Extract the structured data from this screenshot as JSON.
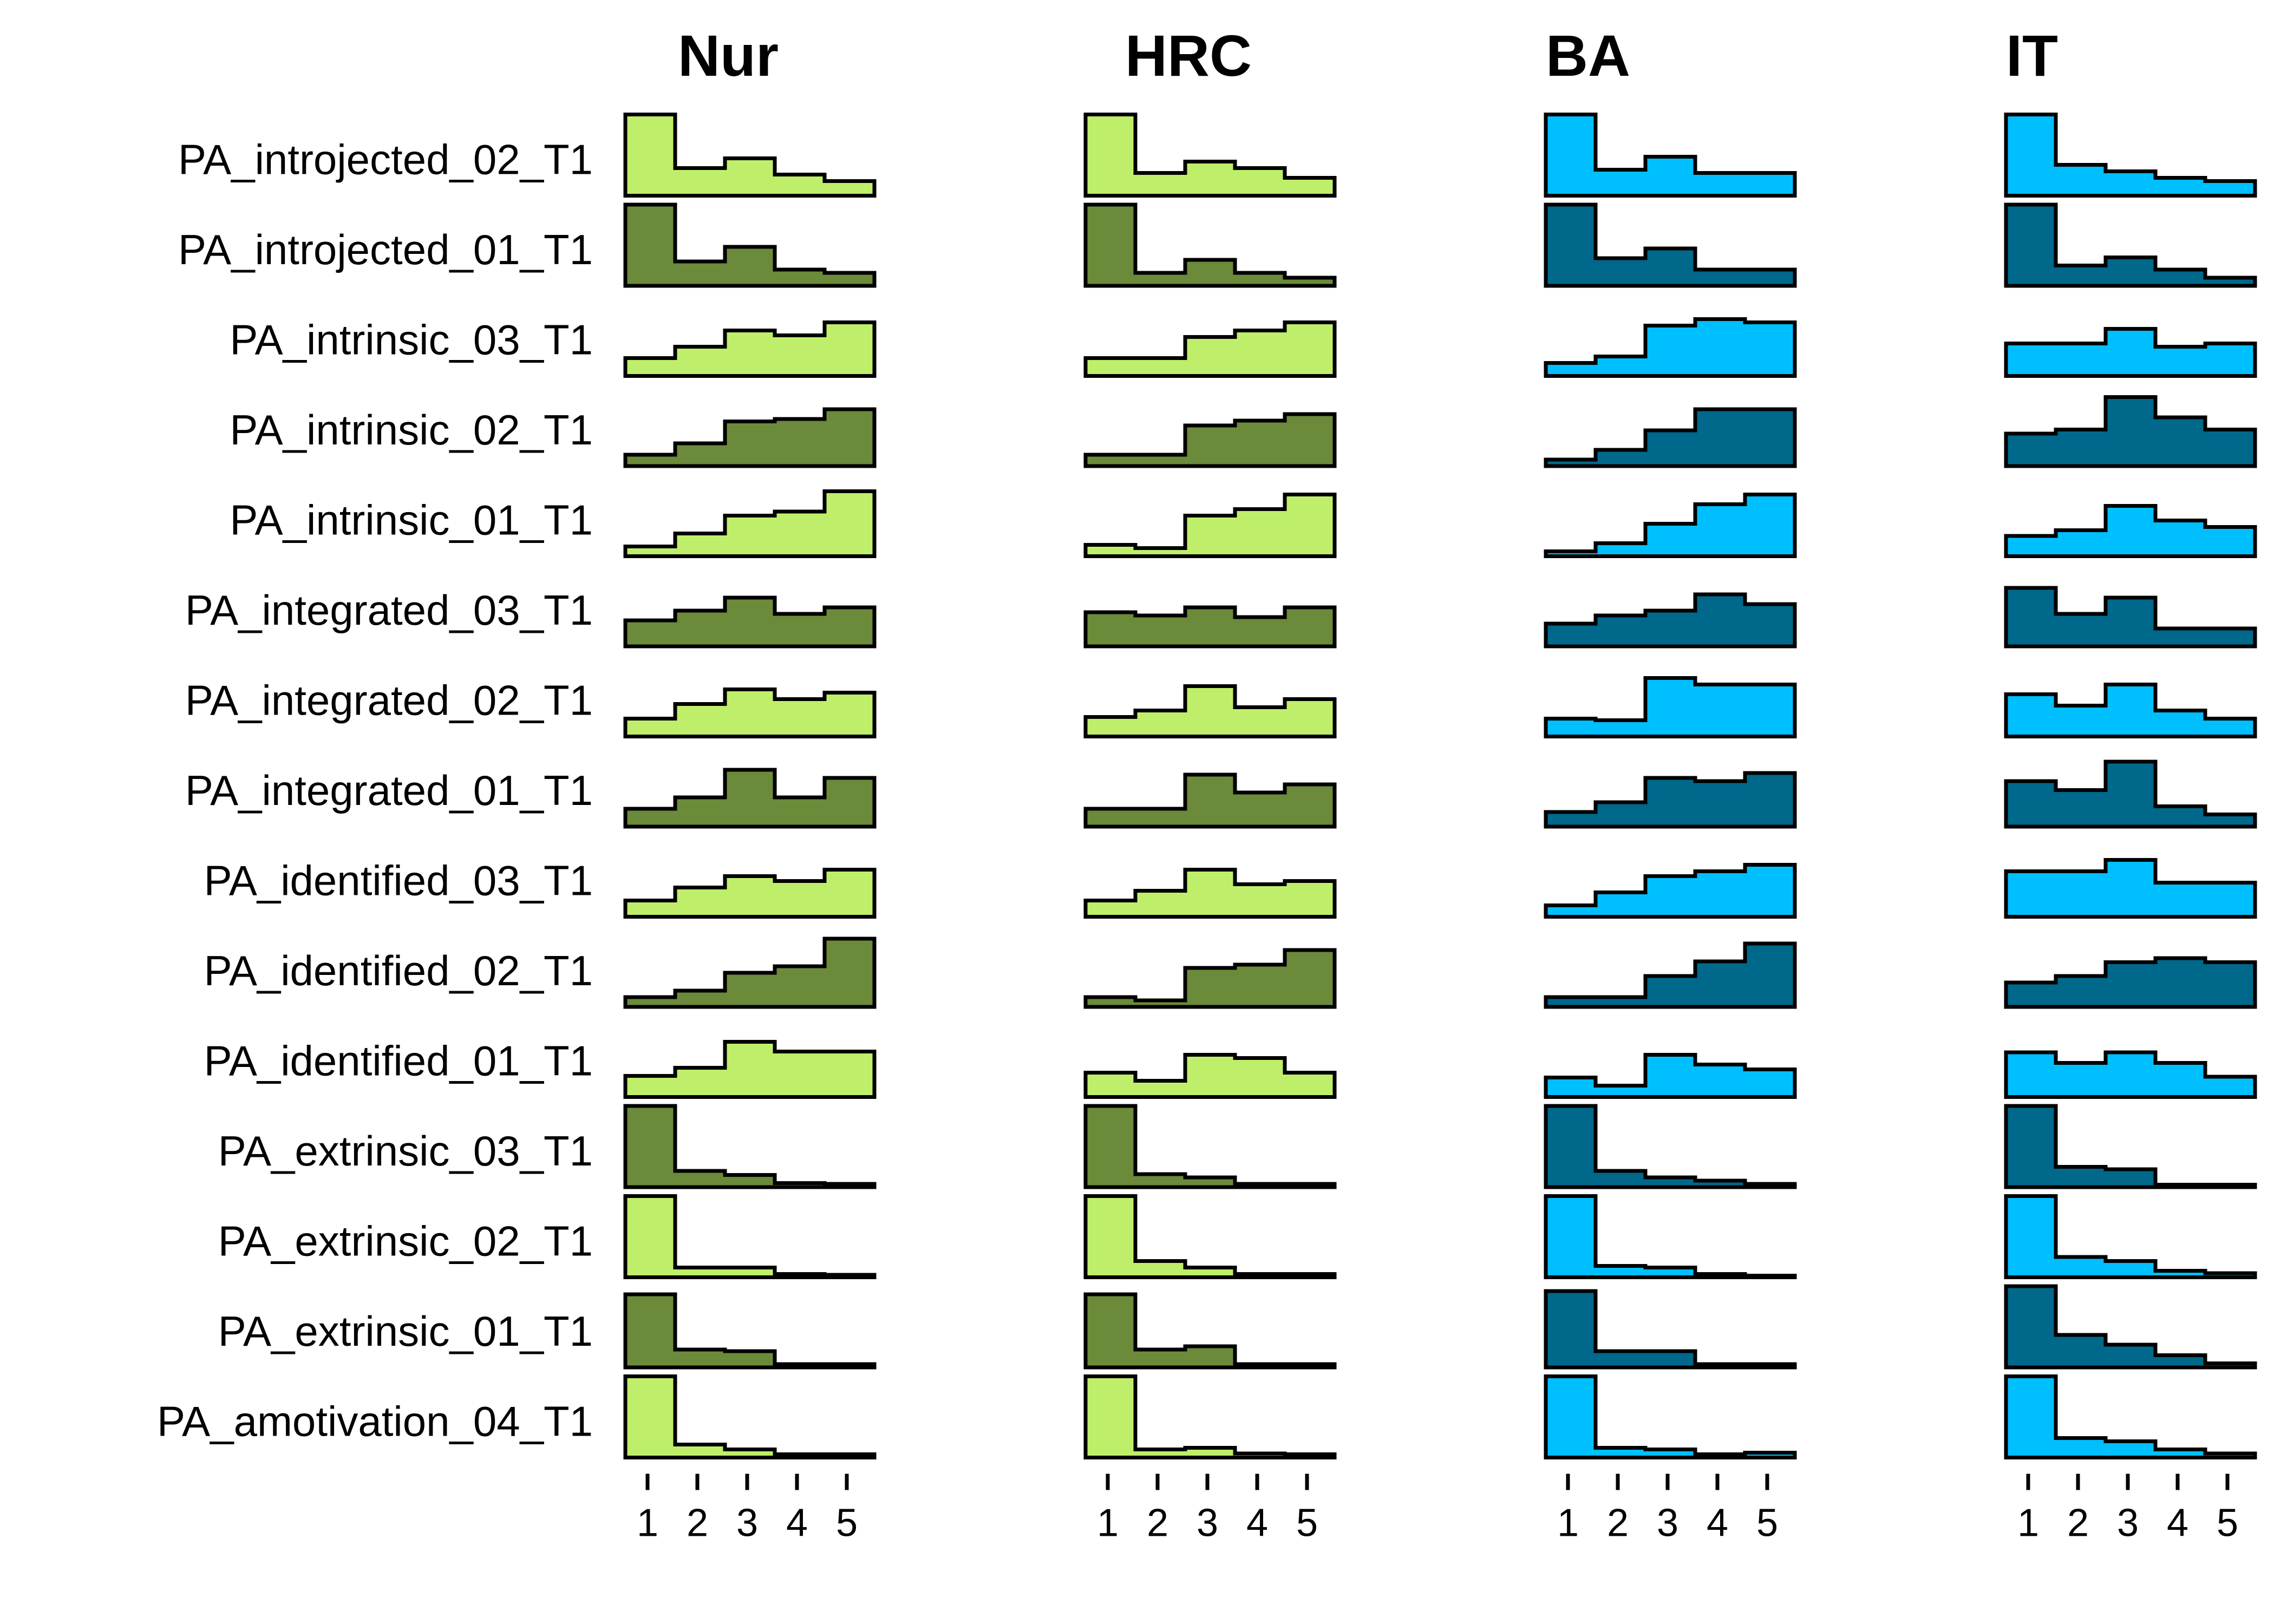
{
  "chart_data": {
    "type": "histogram-grid",
    "x_categories": [
      1,
      2,
      3,
      4,
      5
    ],
    "x_tick_labels": [
      "1",
      "2",
      "3",
      "4",
      "5"
    ],
    "colors": {
      "Nur_light": "#BFEF6A",
      "Nur_dark": "#6B8A3A",
      "HRC_light": "#BFEF6A",
      "HRC_dark": "#6B8A3A",
      "BA_light": "#00BFFF",
      "BA_dark": "#00688B",
      "IT_light": "#00BFFF",
      "IT_dark": "#00688B"
    },
    "panels": [
      "Nur",
      "HRC",
      "BA",
      "IT"
    ],
    "rows": [
      {
        "label": "PA_introjected_02_T1",
        "shade": "light",
        "values": {
          "Nur": [
            1.0,
            0.34,
            0.46,
            0.26,
            0.18
          ],
          "HRC": [
            1.0,
            0.28,
            0.42,
            0.34,
            0.22
          ],
          "BA": [
            1.0,
            0.32,
            0.48,
            0.28,
            0.28
          ],
          "IT": [
            1.0,
            0.38,
            0.3,
            0.22,
            0.18
          ]
        }
      },
      {
        "label": "PA_introjected_01_T1",
        "shade": "dark",
        "values": {
          "Nur": [
            1.0,
            0.3,
            0.48,
            0.2,
            0.16
          ],
          "HRC": [
            1.0,
            0.16,
            0.32,
            0.16,
            0.1
          ],
          "BA": [
            1.0,
            0.34,
            0.46,
            0.2,
            0.2
          ],
          "IT": [
            1.0,
            0.25,
            0.35,
            0.2,
            0.1
          ]
        }
      },
      {
        "label": "PA_intrinsic_03_T1",
        "shade": "light",
        "values": {
          "Nur": [
            0.22,
            0.36,
            0.56,
            0.5,
            0.66
          ],
          "HRC": [
            0.22,
            0.22,
            0.48,
            0.56,
            0.66
          ],
          "BA": [
            0.16,
            0.24,
            0.62,
            0.7,
            0.66
          ],
          "IT": [
            0.4,
            0.4,
            0.58,
            0.36,
            0.4
          ]
        }
      },
      {
        "label": "PA_intrinsic_02_T1",
        "shade": "dark",
        "values": {
          "Nur": [
            0.14,
            0.28,
            0.55,
            0.58,
            0.7
          ],
          "HRC": [
            0.14,
            0.14,
            0.5,
            0.56,
            0.64
          ],
          "BA": [
            0.08,
            0.2,
            0.44,
            0.7,
            0.7
          ],
          "IT": [
            0.4,
            0.45,
            0.85,
            0.6,
            0.45
          ]
        }
      },
      {
        "label": "PA_intrinsic_01_T1",
        "shade": "light",
        "values": {
          "Nur": [
            0.12,
            0.28,
            0.5,
            0.55,
            0.8
          ],
          "HRC": [
            0.14,
            0.1,
            0.5,
            0.58,
            0.76
          ],
          "BA": [
            0.06,
            0.16,
            0.4,
            0.64,
            0.76
          ],
          "IT": [
            0.25,
            0.32,
            0.62,
            0.44,
            0.36
          ]
        }
      },
      {
        "label": "PA_integrated_03_T1",
        "shade": "dark",
        "values": {
          "Nur": [
            0.32,
            0.44,
            0.6,
            0.4,
            0.48
          ],
          "HRC": [
            0.42,
            0.38,
            0.48,
            0.36,
            0.48
          ],
          "BA": [
            0.28,
            0.38,
            0.44,
            0.64,
            0.52
          ],
          "IT": [
            0.72,
            0.4,
            0.6,
            0.22,
            0.22
          ]
        }
      },
      {
        "label": "PA_integrated_02_T1",
        "shade": "light",
        "values": {
          "Nur": [
            0.22,
            0.4,
            0.58,
            0.46,
            0.54
          ],
          "HRC": [
            0.24,
            0.32,
            0.62,
            0.36,
            0.46
          ],
          "BA": [
            0.22,
            0.2,
            0.72,
            0.64,
            0.64
          ],
          "IT": [
            0.52,
            0.38,
            0.64,
            0.32,
            0.22
          ]
        }
      },
      {
        "label": "PA_integrated_01_T1",
        "shade": "dark",
        "values": {
          "Nur": [
            0.22,
            0.36,
            0.7,
            0.36,
            0.6
          ],
          "HRC": [
            0.22,
            0.22,
            0.64,
            0.42,
            0.52
          ],
          "BA": [
            0.18,
            0.3,
            0.6,
            0.56,
            0.66
          ],
          "IT": [
            0.56,
            0.45,
            0.8,
            0.25,
            0.15
          ]
        }
      },
      {
        "label": "PA_identified_03_T1",
        "shade": "light",
        "values": {
          "Nur": [
            0.2,
            0.36,
            0.5,
            0.44,
            0.58
          ],
          "HRC": [
            0.2,
            0.32,
            0.58,
            0.4,
            0.44
          ],
          "BA": [
            0.14,
            0.3,
            0.5,
            0.56,
            0.64
          ],
          "IT": [
            0.56,
            0.56,
            0.7,
            0.42,
            0.42
          ]
        }
      },
      {
        "label": "PA_identified_02_T1",
        "shade": "dark",
        "values": {
          "Nur": [
            0.12,
            0.2,
            0.42,
            0.5,
            0.84
          ],
          "HRC": [
            0.12,
            0.08,
            0.48,
            0.52,
            0.7
          ],
          "BA": [
            0.12,
            0.12,
            0.38,
            0.56,
            0.78
          ],
          "IT": [
            0.3,
            0.38,
            0.55,
            0.6,
            0.55
          ]
        }
      },
      {
        "label": "PA_identified_01_T1",
        "shade": "light",
        "values": {
          "Nur": [
            0.26,
            0.36,
            0.68,
            0.56,
            0.56
          ],
          "HRC": [
            0.3,
            0.2,
            0.52,
            0.48,
            0.3
          ],
          "BA": [
            0.24,
            0.14,
            0.52,
            0.4,
            0.34
          ],
          "IT": [
            0.55,
            0.42,
            0.55,
            0.42,
            0.25
          ]
        }
      },
      {
        "label": "PA_extrinsic_03_T1",
        "shade": "dark",
        "values": {
          "Nur": [
            1.0,
            0.2,
            0.15,
            0.05,
            0.04
          ],
          "HRC": [
            1.0,
            0.16,
            0.12,
            0.04,
            0.04
          ],
          "BA": [
            1.0,
            0.2,
            0.12,
            0.08,
            0.04
          ],
          "IT": [
            1.0,
            0.25,
            0.22,
            0.03,
            0.03
          ]
        }
      },
      {
        "label": "PA_extrinsic_02_T1",
        "shade": "light",
        "values": {
          "Nur": [
            1.0,
            0.12,
            0.12,
            0.04,
            0.03
          ],
          "HRC": [
            1.0,
            0.2,
            0.12,
            0.04,
            0.04
          ],
          "BA": [
            1.0,
            0.14,
            0.12,
            0.04,
            0.02
          ],
          "IT": [
            1.0,
            0.25,
            0.2,
            0.08,
            0.05
          ]
        }
      },
      {
        "label": "PA_extrinsic_01_T1",
        "shade": "dark",
        "values": {
          "Nur": [
            0.9,
            0.22,
            0.2,
            0.04,
            0.04
          ],
          "HRC": [
            0.9,
            0.22,
            0.26,
            0.04,
            0.04
          ],
          "BA": [
            0.94,
            0.2,
            0.2,
            0.04,
            0.04
          ],
          "IT": [
            1.0,
            0.4,
            0.28,
            0.15,
            0.05
          ]
        }
      },
      {
        "label": "PA_amotivation_04_T1",
        "shade": "light",
        "values": {
          "Nur": [
            1.0,
            0.16,
            0.1,
            0.04,
            0.04
          ],
          "HRC": [
            1.0,
            0.1,
            0.12,
            0.05,
            0.04
          ],
          "BA": [
            1.0,
            0.12,
            0.1,
            0.04,
            0.06
          ],
          "IT": [
            1.0,
            0.24,
            0.2,
            0.1,
            0.05
          ]
        }
      }
    ]
  }
}
